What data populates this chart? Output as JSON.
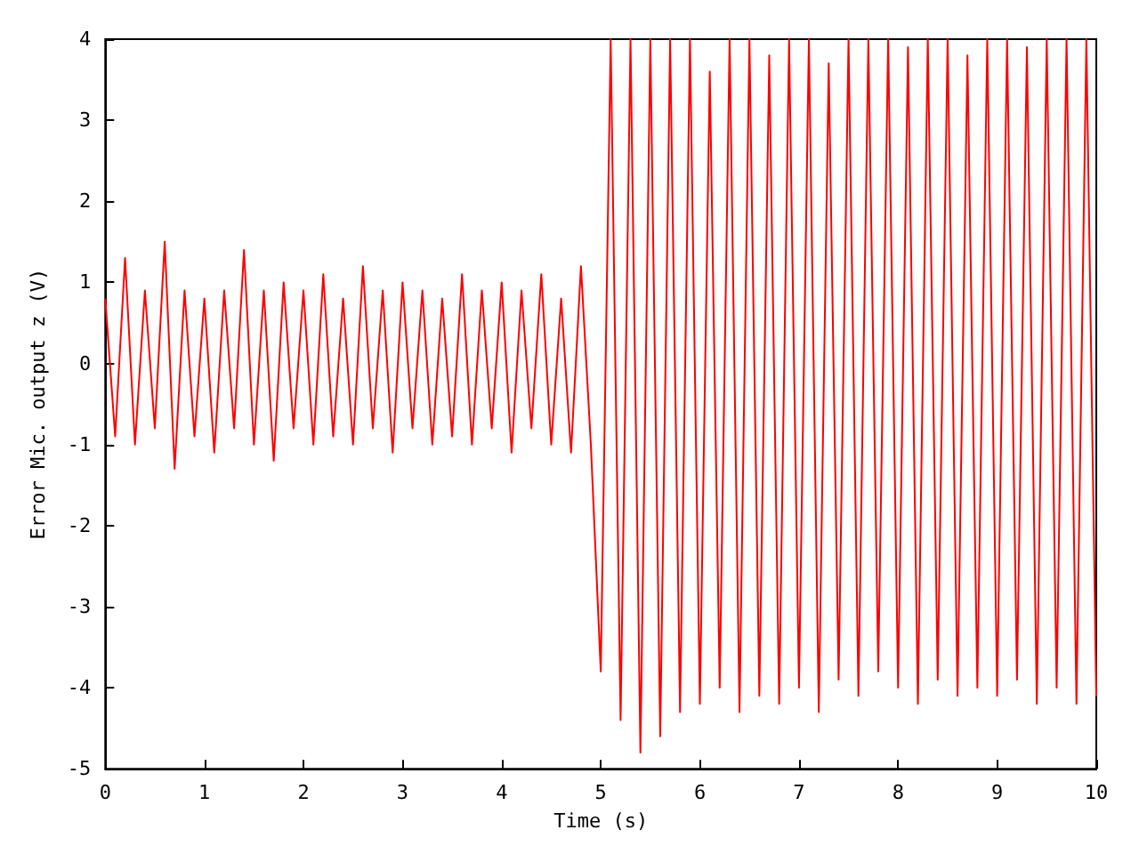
{
  "chart_data": {
    "type": "line",
    "xlabel": "Time (s)",
    "ylabel": "Error Mic. output z (V)",
    "xlim": [
      0,
      10
    ],
    "xticks": [
      0,
      1,
      2,
      3,
      4,
      5,
      6,
      7,
      8,
      9,
      10
    ],
    "ylim": [
      -5,
      4
    ],
    "yticks": [
      -5,
      -4,
      -3,
      -2,
      -1,
      0,
      1,
      2,
      3,
      4
    ],
    "grid": false,
    "marker": "none",
    "line_style": "solid",
    "x": [
      0,
      0.1,
      0.2,
      0.3,
      0.4,
      0.5,
      0.6,
      0.7,
      0.8,
      0.9,
      1,
      1.1,
      1.2,
      1.3,
      1.4,
      1.5,
      1.6,
      1.7,
      1.8,
      1.9,
      2,
      2.1,
      2.2,
      2.3,
      2.4,
      2.5,
      2.6,
      2.7,
      2.8,
      2.9,
      3,
      3.1,
      3.2,
      3.3,
      3.4,
      3.5,
      3.6,
      3.7,
      3.8,
      3.9,
      4,
      4.1,
      4.2,
      4.3,
      4.4,
      4.5,
      4.6,
      4.7,
      4.8,
      4.9,
      5,
      5.1,
      5.2,
      5.3,
      5.4,
      5.5,
      5.6,
      5.7,
      5.8,
      5.9,
      6,
      6.1,
      6.2,
      6.3,
      6.4,
      6.5,
      6.6,
      6.7,
      6.8,
      6.9,
      7,
      7.1,
      7.2,
      7.3,
      7.4,
      7.5,
      7.6,
      7.7,
      7.8,
      7.9,
      8,
      8.1,
      8.2,
      8.3,
      8.4,
      8.5,
      8.6,
      8.7,
      8.8,
      8.9,
      9,
      9.1,
      9.2,
      9.3,
      9.4,
      9.5,
      9.6,
      9.7,
      9.8,
      9.9,
      10
    ],
    "series": [
      {
        "color": "#ff0000",
        "values": [
          0.8,
          -0.9,
          1.3,
          -1.0,
          0.9,
          -0.8,
          1.5,
          -1.3,
          0.9,
          -0.9,
          0.8,
          -1.1,
          0.9,
          -0.8,
          1.4,
          -1.0,
          0.9,
          -1.2,
          1.0,
          -0.8,
          0.9,
          -1.0,
          1.1,
          -0.9,
          0.8,
          -1.0,
          1.2,
          -0.8,
          0.9,
          -1.1,
          1.0,
          -0.8,
          0.9,
          -1.0,
          0.8,
          -0.9,
          1.1,
          -1.0,
          0.9,
          -0.8,
          1.0,
          -1.1,
          0.9,
          -0.8,
          1.1,
          -1.0,
          0.8,
          -1.1,
          1.2,
          -1.0,
          -3.8,
          4,
          -4.4,
          4,
          -4.8,
          4,
          -4.6,
          4,
          -4.3,
          4,
          -4.2,
          3.6,
          -4.0,
          4,
          -4.3,
          4,
          -4.1,
          3.8,
          -4.2,
          4,
          -4.0,
          4,
          -4.3,
          3.7,
          -3.9,
          4,
          -4.1,
          4,
          -3.8,
          4,
          -4.0,
          3.9,
          -4.2,
          4,
          -3.9,
          4,
          -4.1,
          3.8,
          -4.0,
          4,
          -4.1,
          4,
          -3.9,
          3.9,
          -4.2,
          4,
          -4.0,
          4,
          -4.2,
          4,
          -4.1
        ]
      }
    ]
  }
}
